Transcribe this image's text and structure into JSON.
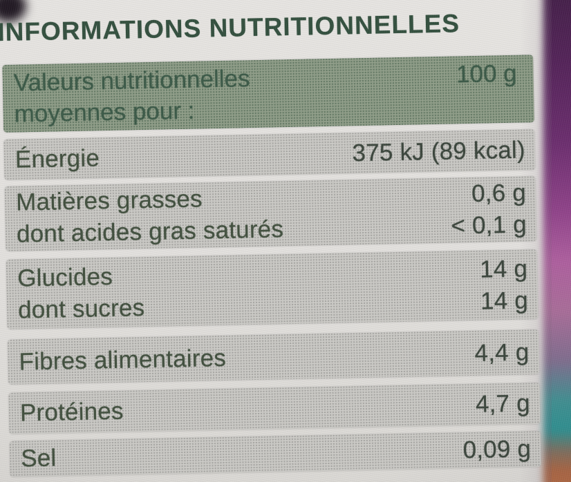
{
  "title": "INFORMATIONS NUTRITIONNELLES",
  "table": {
    "header": {
      "label_line1": "Valeurs nutritionnelles",
      "label_line2": "moyennes pour :",
      "amount": "100 g"
    },
    "rows": [
      {
        "lines": [
          {
            "label": "Énergie",
            "value": "375 kJ (89 kcal)"
          }
        ]
      },
      {
        "lines": [
          {
            "label": "Matières grasses",
            "value": "0,6 g"
          },
          {
            "label": "dont acides gras saturés",
            "value": "< 0,1 g"
          }
        ]
      },
      {
        "lines": [
          {
            "label": "Glucides",
            "value": "14 g"
          },
          {
            "label": "dont sucres",
            "value": "14 g"
          }
        ]
      },
      {
        "lines": [
          {
            "label": "Fibres alimentaires",
            "value": "4,4 g"
          }
        ]
      },
      {
        "lines": [
          {
            "label": "Protéines",
            "value": "4,7 g"
          }
        ]
      },
      {
        "lines": [
          {
            "label": "Sel",
            "value": "0,09 g"
          }
        ]
      }
    ]
  },
  "colors": {
    "title_green": "#34503f",
    "header_band_green": "#909e89",
    "header_text_green": "#3c5a48",
    "row_band_gray": "#cbcac6",
    "row_text": "#42503f",
    "label_paper": "#e2e0dd",
    "background_purple_top": "#542459",
    "background_magenta": "#ad5f9e",
    "background_teal": "#2f8f90",
    "background_orange": "#b06a45"
  }
}
